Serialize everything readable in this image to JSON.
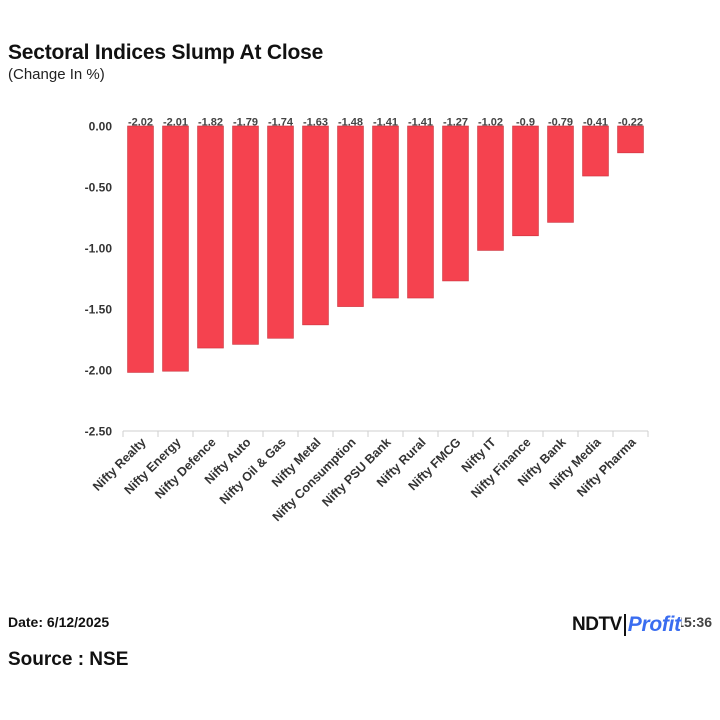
{
  "header": {
    "title": "Sectoral Indices Slump At Close",
    "subtitle": "(Change In %)"
  },
  "footer": {
    "date": "Date: 6/12/2025",
    "source": "Source : NSE",
    "time": "Time: 15:36",
    "logo_left": "NDTV",
    "logo_right": "Profit"
  },
  "colors": {
    "bar": "#f5424f",
    "bar_edge": "#c9303b",
    "logo_accent": "#3a6df0"
  },
  "chart_data": {
    "type": "bar",
    "title": "Sectoral Indices Slump At Close",
    "subtitle": "(Change In %)",
    "xlabel": "",
    "ylabel": "",
    "categories": [
      "Nifty Realty",
      "Nifty Energy",
      "Nifty Defence",
      "Nifty Auto",
      "Nifty Oil & Gas",
      "Nifty Metal",
      "Nifty Consumption",
      "Nifty PSU Bank",
      "Nifty Rural",
      "Nifty FMCG",
      "Nifty IT",
      "Nifty Finance",
      "Nifty Bank",
      "Nifty Media",
      "Nifty Pharma"
    ],
    "values": [
      -2.02,
      -2.01,
      -1.82,
      -1.79,
      -1.74,
      -1.63,
      -1.48,
      -1.41,
      -1.41,
      -1.27,
      -1.02,
      -0.9,
      -0.79,
      -0.41,
      -0.22
    ],
    "value_labels": [
      "-2.02",
      "-2.01",
      "-1.82",
      "-1.79",
      "-1.74",
      "-1.63",
      "-1.48",
      "-1.41",
      "-1.41",
      "-1.27",
      "-1.02",
      "-0.9",
      "-0.79",
      "-0.41",
      "-0.22"
    ],
    "ylim": [
      -2.5,
      0
    ],
    "yticks": [
      0,
      -0.5,
      -1,
      -1.5,
      -2,
      -2.5
    ],
    "ytick_labels": [
      "0.00",
      "-0.50",
      "-1.00",
      "-1.50",
      "-2.00",
      "-2.50"
    ],
    "grid": false,
    "legend": "none"
  }
}
